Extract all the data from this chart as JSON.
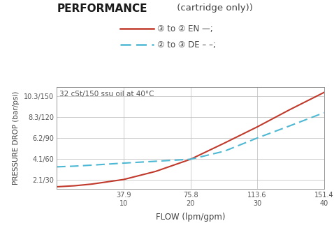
{
  "title_bold": "PERFORMANCE",
  "title_normal": " (cartridge only))",
  "subtitle": "32 cSt/150 ssu oil at 40°C",
  "xlabel": "FLOW (lpm/gpm)",
  "ylabel": "PRESSURE DROP (bar/psi)",
  "legend_en_text": "③ to ② EN —;",
  "legend_de_text": "② to ③ DE – –;",
  "x_ticks": [
    37.9,
    75.8,
    113.6,
    151.4
  ],
  "x_tick_labels": [
    "37.9\n10",
    "75.8\n20",
    "113.6\n30",
    "151.4\n40"
  ],
  "y_ticks": [
    2.1,
    4.1,
    6.2,
    8.3,
    10.3
  ],
  "y_tick_labels": [
    "2.1/30",
    "4.1/60",
    "6.2/90",
    "8.3/120",
    "10.3/150"
  ],
  "xlim": [
    0,
    151.4
  ],
  "ylim": [
    1.2,
    11.2
  ],
  "en_color": "#c0392b",
  "de_color": "#4db8d4",
  "bg_color": "#ffffff",
  "grid_color": "#bbbbbb",
  "en_x": [
    0,
    10,
    20,
    37.9,
    56,
    75.8,
    95,
    113.6,
    132,
    151.4
  ],
  "en_y": [
    1.38,
    1.48,
    1.65,
    2.1,
    2.9,
    4.1,
    5.7,
    7.3,
    9.0,
    10.7
  ],
  "de_x": [
    0,
    10,
    20,
    37.9,
    56,
    75.8,
    95,
    113.6,
    132,
    151.4
  ],
  "de_y": [
    3.35,
    3.42,
    3.52,
    3.72,
    3.9,
    4.1,
    4.9,
    6.2,
    7.4,
    8.7
  ]
}
